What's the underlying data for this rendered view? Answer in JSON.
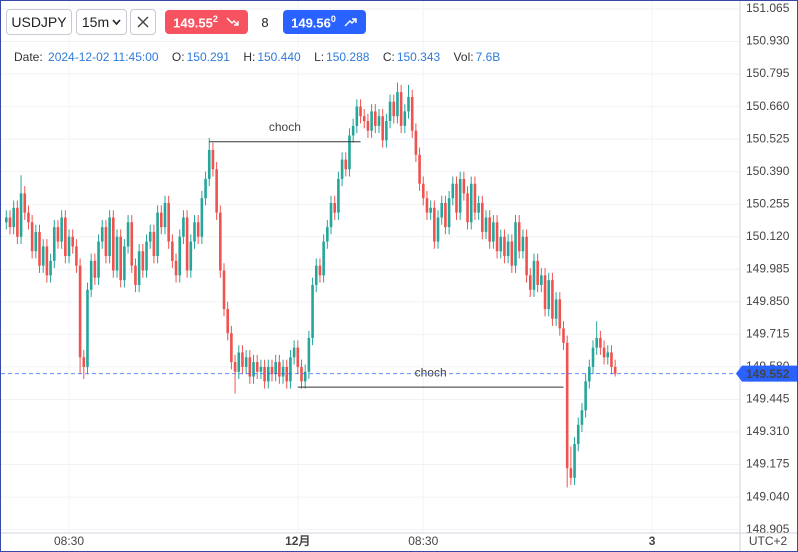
{
  "toolbar": {
    "symbol": "USDJPY",
    "interval": "15m",
    "sell": {
      "price": "149.55",
      "pip": "2"
    },
    "spread": "8",
    "buy": {
      "price": "149.56",
      "pip": "0"
    }
  },
  "ohlc_legend": {
    "date_label": "Date:",
    "date": "2024-12-02 11:45:00",
    "open_label": "O:",
    "open": "150.291",
    "high_label": "H:",
    "high": "150.440",
    "low_label": "L:",
    "low": "150.288",
    "close_label": "C:",
    "close": "150.343",
    "vol_label": "Vol:",
    "vol": "7.6B"
  },
  "chart_data": {
    "type": "candlestick",
    "up_color": "#26a69a",
    "down_color": "#ef5350",
    "grid": true,
    "timezone": "UTC+2",
    "ylim": [
      148.891,
      151.098
    ],
    "yticks": [
      151.065,
      {
        "value": 150.93,
        "label": "150.930"
      },
      150.795,
      {
        "value": 150.66,
        "label": "150.660"
      },
      150.525,
      {
        "value": 150.39,
        "label": "150.390"
      },
      150.255,
      {
        "value": 150.12,
        "label": "150.120"
      },
      149.985,
      {
        "value": 149.85,
        "label": "149.850"
      },
      149.715,
      {
        "value": 149.58,
        "label": "149.580"
      },
      149.445,
      {
        "value": 149.31,
        "label": "149.310"
      },
      149.175,
      {
        "value": 149.04,
        "label": "149.040"
      },
      148.905
    ],
    "last_price": 149.552,
    "last_price_color": "#2962ff",
    "annotations": [
      {
        "text": "choch",
        "level": 150.514,
        "from": 55,
        "to": 96
      },
      {
        "text": "choch",
        "level": 149.496,
        "from": 79,
        "to": 151
      }
    ],
    "categories": [
      null,
      null,
      null,
      null,
      null,
      null,
      null,
      null,
      null,
      null,
      null,
      null,
      null,
      null,
      null,
      null,
      null,
      "08:30",
      null,
      null,
      null,
      null,
      null,
      null,
      null,
      null,
      null,
      null,
      null,
      null,
      null,
      null,
      null,
      null,
      null,
      null,
      null,
      null,
      null,
      null,
      null,
      null,
      null,
      null,
      null,
      null,
      null,
      null,
      null,
      null,
      null,
      null,
      null,
      null,
      null,
      null,
      null,
      null,
      null,
      null,
      null,
      null,
      null,
      null,
      null,
      null,
      null,
      null,
      null,
      null,
      null,
      null,
      null,
      null,
      null,
      null,
      null,
      null,
      null,
      "12月",
      null,
      null,
      null,
      null,
      null,
      null,
      null,
      null,
      null,
      null,
      null,
      null,
      null,
      null,
      null,
      null,
      null,
      null,
      null,
      null,
      null,
      null,
      null,
      null,
      null,
      null,
      null,
      null,
      null,
      null,
      null,
      null,
      null,
      "08:30",
      null,
      null,
      null,
      null,
      null,
      null,
      null,
      null,
      null,
      null,
      null,
      null,
      null,
      null,
      null,
      null,
      null,
      null,
      null,
      null,
      null,
      null,
      null,
      null,
      null,
      null,
      null,
      null,
      null,
      null,
      null,
      null,
      null,
      null,
      null,
      null,
      null,
      null,
      null,
      null,
      null,
      null,
      null,
      null,
      null,
      null,
      null,
      null,
      null,
      null,
      null,
      null,
      null,
      null,
      null,
      null,
      null,
      null,
      null,
      null,
      null,
      "3"
    ],
    "candles": [
      [
        150.18,
        150.23,
        150.15,
        150.2
      ],
      [
        150.2,
        150.23,
        150.13,
        150.16
      ],
      [
        150.16,
        150.27,
        150.13,
        150.24
      ],
      [
        150.24,
        150.27,
        150.09,
        150.12
      ],
      [
        150.12,
        150.375,
        150.09,
        150.3
      ],
      [
        150.3,
        150.33,
        150.19,
        150.22
      ],
      [
        150.22,
        150.25,
        150.15,
        150.18
      ],
      [
        150.18,
        150.21,
        150.03,
        150.06
      ],
      [
        150.06,
        150.17,
        150.03,
        150.14
      ],
      [
        150.14,
        150.17,
        149.97,
        150.0
      ],
      [
        150.0,
        150.11,
        149.97,
        150.08
      ],
      [
        150.08,
        150.11,
        149.93,
        149.96
      ],
      [
        149.96,
        150.05,
        149.93,
        150.02
      ],
      [
        150.02,
        150.19,
        149.99,
        150.16
      ],
      [
        150.16,
        150.19,
        150.07,
        150.1
      ],
      [
        150.1,
        150.23,
        150.07,
        150.2
      ],
      [
        150.2,
        150.23,
        150.01,
        150.04
      ],
      [
        150.04,
        150.15,
        150.01,
        150.12
      ],
      [
        150.12,
        150.15,
        150.05,
        150.08
      ],
      [
        150.08,
        150.11,
        149.97,
        150.0
      ],
      [
        150.0,
        150.03,
        149.55,
        149.62
      ],
      [
        149.62,
        149.65,
        149.53,
        149.58
      ],
      [
        149.58,
        149.93,
        149.55,
        149.9
      ],
      [
        149.9,
        150.05,
        149.87,
        150.02
      ],
      [
        150.02,
        150.05,
        149.92,
        149.95
      ],
      [
        149.95,
        150.13,
        149.92,
        150.1
      ],
      [
        150.1,
        150.19,
        150.07,
        150.16
      ],
      [
        150.16,
        150.19,
        150.01,
        150.04
      ],
      [
        150.04,
        150.23,
        150.01,
        150.2
      ],
      [
        150.2,
        150.23,
        149.95,
        149.98
      ],
      [
        149.98,
        150.15,
        149.95,
        150.12
      ],
      [
        150.12,
        150.15,
        149.91,
        149.94
      ],
      [
        149.94,
        150.11,
        149.91,
        150.08
      ],
      [
        150.08,
        150.21,
        150.05,
        150.18
      ],
      [
        150.18,
        150.21,
        149.97,
        150.0
      ],
      [
        150.0,
        150.03,
        149.89,
        149.92
      ],
      [
        149.92,
        150.09,
        149.89,
        150.06
      ],
      [
        150.06,
        150.09,
        149.95,
        149.98
      ],
      [
        149.98,
        150.13,
        149.95,
        150.1
      ],
      [
        150.1,
        150.17,
        150.07,
        150.14
      ],
      [
        150.14,
        150.17,
        150.01,
        150.04
      ],
      [
        150.04,
        150.25,
        150.01,
        150.22
      ],
      [
        150.22,
        150.25,
        150.13,
        150.16
      ],
      [
        150.16,
        150.29,
        150.13,
        150.26
      ],
      [
        150.26,
        150.29,
        150.07,
        150.1
      ],
      [
        150.1,
        150.13,
        149.99,
        150.02
      ],
      [
        150.02,
        150.05,
        149.93,
        149.96
      ],
      [
        149.96,
        150.15,
        149.93,
        150.12
      ],
      [
        150.12,
        150.23,
        150.09,
        150.2
      ],
      [
        150.2,
        150.23,
        149.95,
        149.98
      ],
      [
        149.98,
        150.13,
        149.95,
        150.1
      ],
      [
        150.1,
        150.21,
        150.07,
        150.18
      ],
      [
        150.18,
        150.21,
        150.09,
        150.12
      ],
      [
        150.12,
        150.31,
        150.09,
        150.28
      ],
      [
        150.28,
        150.39,
        150.25,
        150.36
      ],
      [
        150.36,
        150.53,
        150.33,
        150.48
      ],
      [
        150.48,
        150.51,
        150.37,
        150.4
      ],
      [
        150.4,
        150.43,
        150.19,
        150.22
      ],
      [
        150.22,
        150.25,
        149.95,
        149.98
      ],
      [
        149.98,
        150.01,
        149.79,
        149.82
      ],
      [
        149.82,
        149.85,
        149.69,
        149.72
      ],
      [
        149.72,
        149.75,
        149.57,
        149.6
      ],
      [
        149.6,
        149.63,
        149.47,
        149.56
      ],
      [
        149.56,
        149.67,
        149.53,
        149.64
      ],
      [
        149.64,
        149.67,
        149.55,
        149.58
      ],
      [
        149.58,
        149.65,
        149.55,
        149.62
      ],
      [
        149.62,
        149.65,
        149.51,
        149.54
      ],
      [
        149.54,
        149.63,
        149.51,
        149.6
      ],
      [
        149.6,
        149.63,
        149.53,
        149.56
      ],
      [
        149.56,
        149.61,
        149.53,
        149.58
      ],
      [
        149.58,
        149.61,
        149.49,
        149.52
      ],
      [
        149.52,
        149.61,
        149.49,
        149.58
      ],
      [
        149.58,
        149.61,
        149.52,
        149.55
      ],
      [
        149.55,
        149.63,
        149.52,
        149.6
      ],
      [
        149.6,
        149.63,
        149.51,
        149.54
      ],
      [
        149.54,
        149.61,
        149.51,
        149.58
      ],
      [
        149.58,
        149.61,
        149.49,
        149.52
      ],
      [
        149.52,
        149.65,
        149.49,
        149.62
      ],
      [
        149.62,
        149.69,
        149.59,
        149.66
      ],
      [
        149.66,
        149.69,
        149.55,
        149.58
      ],
      [
        149.58,
        149.61,
        149.49,
        149.52
      ],
      [
        149.52,
        149.59,
        149.49,
        149.56
      ],
      [
        149.56,
        149.73,
        149.53,
        149.7
      ],
      [
        149.7,
        149.95,
        149.67,
        149.92
      ],
      [
        149.92,
        150.03,
        149.89,
        150.0
      ],
      [
        150.0,
        150.03,
        149.93,
        149.96
      ],
      [
        149.96,
        150.13,
        149.93,
        150.1
      ],
      [
        150.1,
        150.19,
        150.07,
        150.16
      ],
      [
        150.16,
        150.29,
        150.13,
        150.26
      ],
      [
        150.26,
        150.29,
        150.19,
        150.22
      ],
      [
        150.22,
        150.39,
        150.19,
        150.36
      ],
      [
        150.36,
        150.47,
        150.33,
        150.44
      ],
      [
        150.44,
        150.47,
        150.37,
        150.4
      ],
      [
        150.4,
        150.57,
        150.37,
        150.54
      ],
      [
        150.54,
        150.61,
        150.51,
        150.58
      ],
      [
        150.58,
        150.69,
        150.55,
        150.66
      ],
      [
        150.66,
        150.69,
        150.59,
        150.62
      ],
      [
        150.62,
        150.65,
        150.57,
        150.6
      ],
      [
        150.6,
        150.63,
        150.53,
        150.56
      ],
      [
        150.56,
        150.67,
        150.53,
        150.64
      ],
      [
        150.64,
        150.67,
        150.55,
        150.58
      ],
      [
        150.58,
        150.65,
        150.55,
        150.62
      ],
      [
        150.62,
        150.65,
        150.49,
        150.52
      ],
      [
        150.52,
        150.63,
        150.49,
        150.6
      ],
      [
        150.6,
        150.71,
        150.57,
        150.68
      ],
      [
        150.68,
        150.71,
        150.59,
        150.62
      ],
      [
        150.62,
        150.76,
        150.59,
        150.72
      ],
      [
        150.72,
        150.75,
        150.55,
        150.58
      ],
      [
        150.58,
        150.67,
        150.55,
        150.64
      ],
      [
        150.64,
        150.75,
        150.61,
        150.7
      ],
      [
        150.7,
        150.73,
        150.53,
        150.56
      ],
      [
        150.56,
        150.59,
        150.43,
        150.46
      ],
      [
        150.46,
        150.49,
        150.31,
        150.34
      ],
      [
        150.34,
        150.37,
        150.25,
        150.28
      ],
      [
        150.28,
        150.31,
        150.19,
        150.22
      ],
      [
        150.22,
        150.27,
        150.19,
        150.24
      ],
      [
        150.24,
        150.27,
        150.07,
        150.1
      ],
      [
        150.1,
        150.23,
        150.07,
        150.2
      ],
      [
        150.2,
        150.29,
        150.17,
        150.26
      ],
      [
        150.26,
        150.29,
        150.13,
        150.16
      ],
      [
        150.16,
        150.31,
        150.13,
        150.28
      ],
      [
        150.28,
        150.37,
        150.25,
        150.34
      ],
      [
        150.34,
        150.37,
        150.19,
        150.22
      ],
      [
        150.22,
        150.39,
        150.19,
        150.36
      ],
      [
        150.36,
        150.39,
        150.27,
        150.3
      ],
      [
        150.3,
        150.33,
        150.15,
        150.18
      ],
      [
        150.18,
        150.37,
        150.15,
        150.34
      ],
      [
        150.34,
        150.37,
        150.19,
        150.22
      ],
      [
        150.22,
        150.29,
        150.19,
        150.26
      ],
      [
        150.26,
        150.29,
        150.11,
        150.14
      ],
      [
        150.14,
        150.23,
        150.11,
        150.2
      ],
      [
        150.2,
        150.23,
        150.07,
        150.1
      ],
      [
        150.1,
        150.21,
        150.07,
        150.18
      ],
      [
        150.18,
        150.21,
        150.03,
        150.06
      ],
      [
        150.06,
        150.15,
        150.03,
        150.12
      ],
      [
        150.12,
        150.15,
        150.01,
        150.04
      ],
      [
        150.04,
        150.13,
        150.01,
        150.1
      ],
      [
        150.1,
        150.13,
        149.97,
        150.0
      ],
      [
        150.0,
        150.21,
        149.97,
        150.18
      ],
      [
        150.18,
        150.21,
        150.03,
        150.06
      ],
      [
        150.06,
        150.15,
        150.03,
        150.12
      ],
      [
        150.12,
        150.15,
        149.93,
        149.96
      ],
      [
        149.96,
        149.99,
        149.87,
        149.9
      ],
      [
        149.9,
        150.05,
        149.87,
        150.02
      ],
      [
        150.02,
        150.05,
        149.89,
        149.92
      ],
      [
        149.92,
        149.99,
        149.89,
        149.96
      ],
      [
        149.96,
        149.99,
        149.79,
        149.82
      ],
      [
        149.82,
        149.97,
        149.79,
        149.94
      ],
      [
        149.94,
        149.97,
        149.75,
        149.78
      ],
      [
        149.78,
        149.89,
        149.75,
        149.86
      ],
      [
        149.86,
        149.89,
        149.71,
        149.74
      ],
      [
        149.74,
        149.77,
        149.65,
        149.68
      ],
      [
        149.68,
        149.71,
        149.08,
        149.16
      ],
      [
        149.16,
        149.25,
        149.09,
        149.12
      ],
      [
        149.12,
        149.29,
        149.09,
        149.26
      ],
      [
        149.26,
        149.37,
        149.23,
        149.34
      ],
      [
        149.34,
        149.43,
        149.31,
        149.4
      ],
      [
        149.4,
        149.55,
        149.37,
        149.52
      ],
      [
        149.52,
        149.61,
        149.49,
        149.58
      ],
      [
        149.58,
        149.69,
        149.55,
        149.66
      ],
      [
        149.66,
        149.77,
        149.63,
        149.7
      ],
      [
        149.7,
        149.73,
        149.63,
        149.66
      ],
      [
        149.66,
        149.69,
        149.59,
        149.62
      ],
      [
        149.62,
        149.67,
        149.59,
        149.64
      ],
      [
        149.64,
        149.67,
        149.55,
        149.58
      ],
      [
        149.58,
        149.61,
        149.54,
        149.552
      ],
      null,
      null,
      null,
      null,
      null,
      null,
      null,
      null,
      null,
      null
    ]
  }
}
